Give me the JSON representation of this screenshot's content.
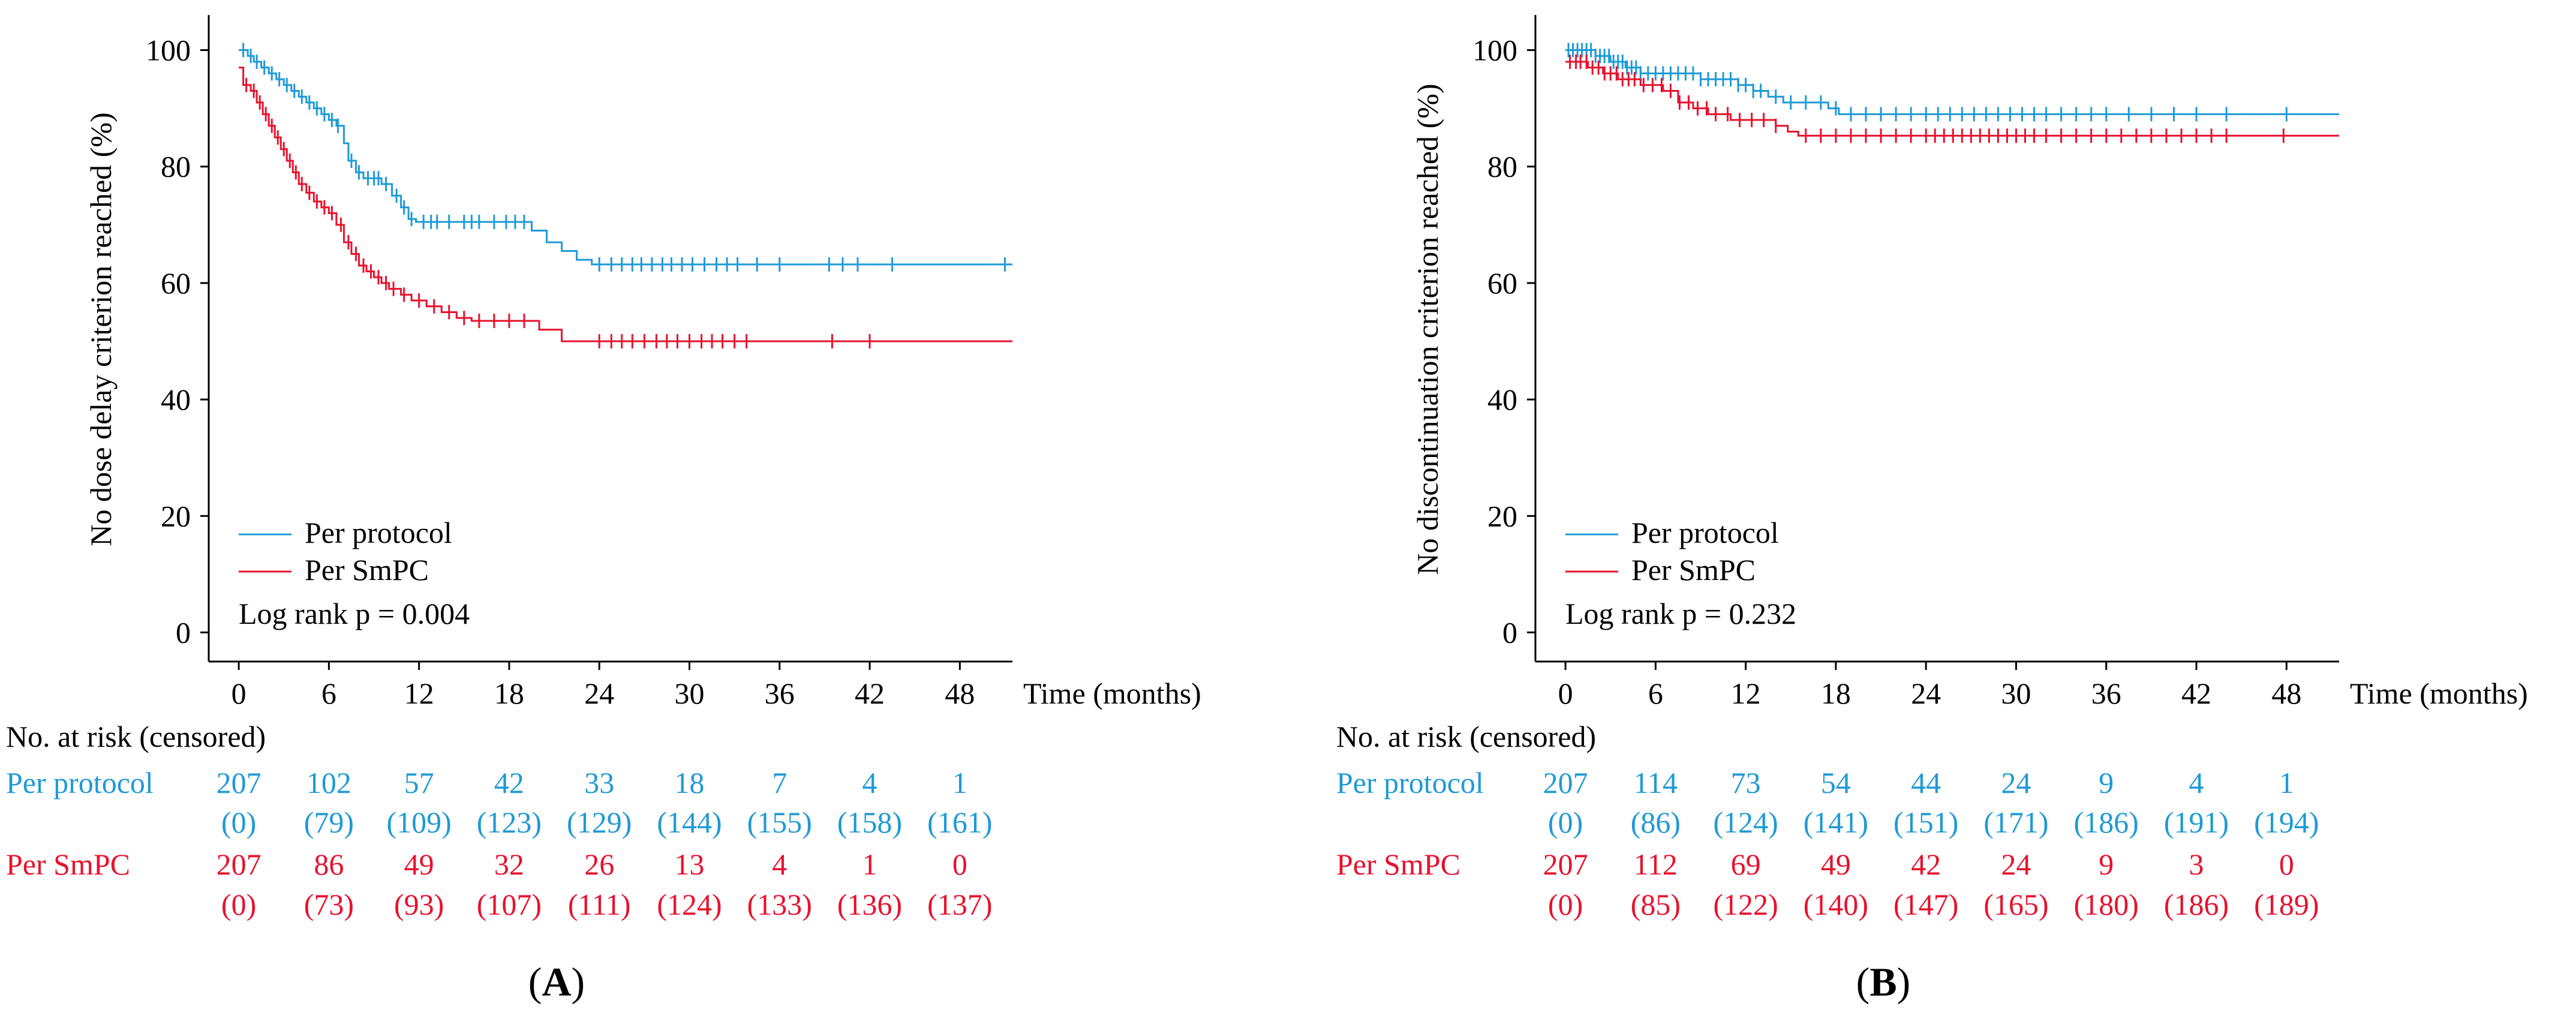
{
  "colors": {
    "per_protocol": "#1E9AD6",
    "per_smpc": "#E8112D",
    "axis": "#000000"
  },
  "chart_data": [
    {
      "panel_label": "A",
      "type": "line",
      "subtype": "kaplan-meier",
      "xlabel": "Time (months)",
      "ylabel": "No dose delay criterion reached (%)",
      "xticks": [
        0,
        6,
        12,
        18,
        24,
        30,
        36,
        42,
        48
      ],
      "xtick_labels": [
        "0",
        "6",
        "12",
        "18",
        "24",
        "30",
        "36",
        "42",
        "48"
      ],
      "yticks": [
        0,
        20,
        40,
        60,
        80,
        100
      ],
      "ytick_labels": [
        "0",
        "20",
        "40",
        "60",
        "80",
        "100"
      ],
      "xlim": [
        -2,
        51.5
      ],
      "ylim": [
        -5,
        105
      ],
      "legend": [
        {
          "name": "Per protocol",
          "key": "per_protocol"
        },
        {
          "name": "Per SmPC",
          "key": "per_smpc"
        }
      ],
      "annotation": "Log rank p = 0.004",
      "series": [
        {
          "name": "Per protocol",
          "key": "per_protocol",
          "steps": [
            [
              0,
              100
            ],
            [
              0.6,
              99
            ],
            [
              1.0,
              98
            ],
            [
              1.5,
              97
            ],
            [
              2.0,
              96
            ],
            [
              2.5,
              95
            ],
            [
              3.0,
              94
            ],
            [
              3.5,
              93
            ],
            [
              4.0,
              92
            ],
            [
              4.5,
              91
            ],
            [
              5.0,
              90
            ],
            [
              5.5,
              89
            ],
            [
              6.0,
              88
            ],
            [
              6.5,
              87
            ],
            [
              7.0,
              84
            ],
            [
              7.3,
              81
            ],
            [
              7.8,
              79
            ],
            [
              8.3,
              78
            ],
            [
              9.5,
              77
            ],
            [
              10.2,
              75
            ],
            [
              10.8,
              73
            ],
            [
              11.3,
              71
            ],
            [
              11.8,
              70.5
            ],
            [
              19.5,
              69
            ],
            [
              20.5,
              67
            ],
            [
              21.5,
              65.5
            ],
            [
              22.5,
              64
            ],
            [
              23.5,
              63.2
            ],
            [
              51.5,
              63.2
            ]
          ],
          "censor_times": [
            0.3,
            0.8,
            1.2,
            1.7,
            2.2,
            2.7,
            3.2,
            3.7,
            4.2,
            4.7,
            5.2,
            5.7,
            6.2,
            6.6,
            7.5,
            8.0,
            8.6,
            9.0,
            9.3,
            9.8,
            10.5,
            11.0,
            11.5,
            12.3,
            12.8,
            13.2,
            14.0,
            15.0,
            15.5,
            16.0,
            17.0,
            17.8,
            18.4,
            19.0,
            24.0,
            24.8,
            25.5,
            26.2,
            26.8,
            27.5,
            28.2,
            28.8,
            29.5,
            30.2,
            31.0,
            31.8,
            32.5,
            33.2,
            34.5,
            36.0,
            39.3,
            40.2,
            41.2,
            43.5,
            51.0
          ]
        },
        {
          "name": "Per SmPC",
          "key": "per_smpc",
          "steps": [
            [
              0,
              97
            ],
            [
              0.3,
              94
            ],
            [
              0.8,
              93
            ],
            [
              1.2,
              91
            ],
            [
              1.6,
              89
            ],
            [
              2.0,
              87
            ],
            [
              2.4,
              85
            ],
            [
              2.8,
              83
            ],
            [
              3.2,
              81
            ],
            [
              3.6,
              79
            ],
            [
              4.0,
              77
            ],
            [
              4.5,
              75.5
            ],
            [
              5.0,
              74
            ],
            [
              5.5,
              73
            ],
            [
              6.0,
              72
            ],
            [
              6.5,
              70
            ],
            [
              7.0,
              67
            ],
            [
              7.5,
              65
            ],
            [
              8.0,
              63
            ],
            [
              8.5,
              62
            ],
            [
              9.0,
              61
            ],
            [
              9.5,
              60
            ],
            [
              10.0,
              59
            ],
            [
              10.8,
              58
            ],
            [
              11.5,
              57
            ],
            [
              12.5,
              56
            ],
            [
              13.5,
              55
            ],
            [
              14.5,
              54
            ],
            [
              15.5,
              53.5
            ],
            [
              20.0,
              52
            ],
            [
              21.5,
              50
            ],
            [
              51.5,
              50
            ]
          ],
          "censor_times": [
            0.5,
            1.0,
            1.4,
            1.8,
            2.2,
            2.6,
            3.0,
            3.4,
            3.8,
            4.2,
            4.7,
            5.2,
            5.7,
            6.2,
            6.8,
            7.3,
            7.8,
            8.3,
            8.8,
            9.3,
            9.8,
            10.3,
            11.0,
            12.0,
            13.0,
            14.0,
            15.0,
            16.0,
            17.0,
            18.0,
            19.0,
            24.0,
            24.8,
            25.5,
            26.2,
            27.0,
            27.8,
            28.5,
            29.2,
            30.0,
            30.8,
            31.5,
            32.2,
            33.0,
            33.8,
            39.5,
            42.0
          ]
        }
      ]
    },
    {
      "panel_label": "B",
      "type": "line",
      "subtype": "kaplan-meier",
      "xlabel": "Time (months)",
      "ylabel": "No discontinuation criterion reached (%)",
      "xticks": [
        0,
        6,
        12,
        18,
        24,
        30,
        36,
        42,
        48
      ],
      "xtick_labels": [
        "0",
        "6",
        "12",
        "18",
        "24",
        "30",
        "36",
        "42",
        "48"
      ],
      "yticks": [
        0,
        20,
        40,
        60,
        80,
        100
      ],
      "ytick_labels": [
        "0",
        "20",
        "40",
        "60",
        "80",
        "100"
      ],
      "xlim": [
        -2,
        51.5
      ],
      "ylim": [
        -5,
        105
      ],
      "legend": [
        {
          "name": "Per protocol",
          "key": "per_protocol"
        },
        {
          "name": "Per SmPC",
          "key": "per_smpc"
        }
      ],
      "annotation": "Log rank p = 0.232",
      "series": [
        {
          "name": "Per protocol",
          "key": "per_protocol",
          "steps": [
            [
              0,
              100
            ],
            [
              2.0,
              99
            ],
            [
              3.0,
              98
            ],
            [
              4.0,
              97
            ],
            [
              5.0,
              96
            ],
            [
              9.0,
              95
            ],
            [
              11.5,
              94
            ],
            [
              12.5,
              93
            ],
            [
              13.5,
              92
            ],
            [
              14.5,
              91
            ],
            [
              17.5,
              90
            ],
            [
              18.2,
              89
            ],
            [
              51.5,
              89
            ]
          ],
          "censor_times": [
            0.2,
            0.5,
            0.8,
            1.1,
            1.4,
            1.7,
            2.0,
            2.3,
            2.6,
            2.9,
            3.2,
            3.5,
            3.8,
            4.1,
            4.4,
            4.7,
            5.0,
            5.5,
            6.0,
            6.5,
            7.0,
            7.5,
            8.0,
            8.5,
            9.0,
            9.5,
            10.0,
            10.5,
            11.0,
            11.5,
            12.0,
            12.5,
            13.0,
            14.0,
            15.0,
            16.0,
            17.0,
            18.0,
            19.0,
            20.0,
            21.0,
            22.0,
            23.0,
            24.0,
            24.8,
            25.6,
            26.4,
            27.2,
            28.0,
            28.8,
            29.6,
            30.4,
            31.2,
            32.0,
            33.0,
            34.0,
            35.0,
            36.0,
            37.5,
            39.0,
            40.5,
            42.0,
            44.0,
            48.0
          ]
        },
        {
          "name": "Per SmPC",
          "key": "per_smpc",
          "steps": [
            [
              0,
              98
            ],
            [
              1.5,
              97
            ],
            [
              2.5,
              96
            ],
            [
              3.5,
              95
            ],
            [
              5.0,
              94
            ],
            [
              6.5,
              93
            ],
            [
              7.5,
              91
            ],
            [
              8.5,
              90
            ],
            [
              9.5,
              89
            ],
            [
              11.0,
              88
            ],
            [
              14.0,
              87
            ],
            [
              14.8,
              86
            ],
            [
              15.5,
              85.3
            ],
            [
              51.5,
              85.3
            ]
          ],
          "censor_times": [
            0.3,
            0.7,
            1.0,
            1.4,
            1.8,
            2.2,
            2.6,
            3.0,
            3.4,
            3.8,
            4.2,
            4.6,
            5.2,
            5.8,
            6.4,
            7.0,
            7.6,
            8.2,
            8.8,
            9.4,
            10.0,
            10.8,
            11.6,
            12.4,
            13.2,
            14.0,
            16.0,
            17.0,
            18.0,
            19.0,
            20.0,
            21.0,
            22.0,
            23.0,
            24.0,
            24.6,
            25.2,
            25.8,
            26.4,
            27.0,
            27.6,
            28.2,
            28.8,
            29.4,
            30.0,
            30.6,
            31.2,
            32.0,
            33.0,
            34.0,
            35.0,
            36.0,
            37.0,
            38.0,
            39.0,
            40.0,
            41.0,
            42.0,
            43.0,
            44.0,
            47.8
          ]
        }
      ]
    }
  ],
  "risk_tables": [
    {
      "header": "No. at risk (censored)",
      "rows": [
        {
          "name": "Per protocol",
          "key": "per_protocol",
          "at_risk": [
            "207",
            "102",
            "57",
            "42",
            "33",
            "18",
            "7",
            "4",
            "1"
          ],
          "censored": [
            "(0)",
            "(79)",
            "(109)",
            "(123)",
            "(129)",
            "(144)",
            "(155)",
            "(158)",
            "(161)"
          ]
        },
        {
          "name": "Per SmPC",
          "key": "per_smpc",
          "at_risk": [
            "207",
            "86",
            "49",
            "32",
            "26",
            "13",
            "4",
            "1",
            "0"
          ],
          "censored": [
            "(0)",
            "(73)",
            "(93)",
            "(107)",
            "(111)",
            "(124)",
            "(133)",
            "(136)",
            "(137)"
          ]
        }
      ]
    },
    {
      "header": "No. at risk (censored)",
      "rows": [
        {
          "name": "Per protocol",
          "key": "per_protocol",
          "at_risk": [
            "207",
            "114",
            "73",
            "54",
            "44",
            "24",
            "9",
            "4",
            "1"
          ],
          "censored": [
            "(0)",
            "(86)",
            "(124)",
            "(141)",
            "(151)",
            "(171)",
            "(186)",
            "(191)",
            "(194)"
          ]
        },
        {
          "name": "Per SmPC",
          "key": "per_smpc",
          "at_risk": [
            "207",
            "112",
            "69",
            "49",
            "42",
            "24",
            "9",
            "3",
            "0"
          ],
          "censored": [
            "(0)",
            "(85)",
            "(122)",
            "(140)",
            "(147)",
            "(165)",
            "(180)",
            "(186)",
            "(189)"
          ]
        }
      ]
    }
  ]
}
